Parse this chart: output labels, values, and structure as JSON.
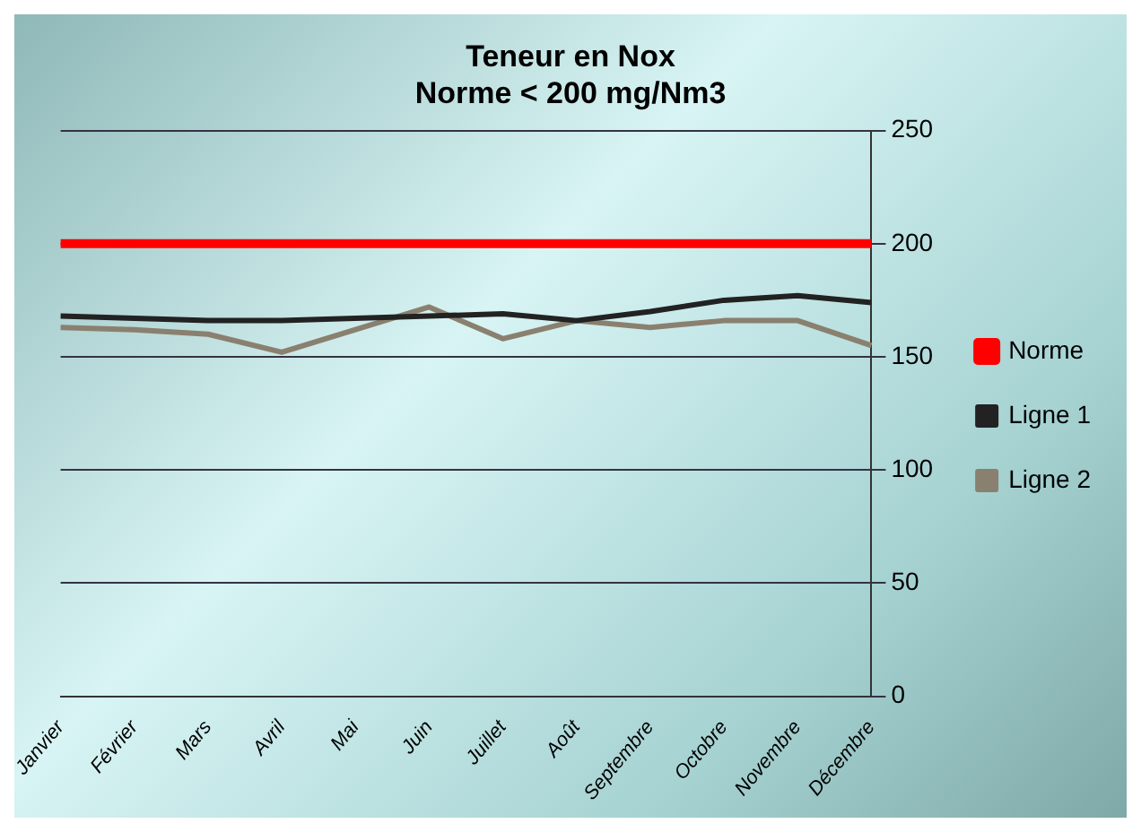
{
  "chart_data": {
    "type": "line",
    "title": "Teneur en Nox\nNorme < 200 mg/Nm3",
    "categories": [
      "Janvier",
      "Février",
      "Mars",
      "Avril",
      "Mai",
      "Juin",
      "Juillet",
      "Août",
      "Septembre",
      "Octobre",
      "Novembre",
      "Décembre"
    ],
    "series": [
      {
        "name": "Norme",
        "color": "#ff0000",
        "values": [
          200,
          200,
          200,
          200,
          200,
          200,
          200,
          200,
          200,
          200,
          200,
          200
        ]
      },
      {
        "name": "Ligne 1",
        "color": "#222222",
        "values": [
          168,
          167,
          166,
          166,
          167,
          168,
          169,
          166,
          170,
          175,
          177,
          174
        ]
      },
      {
        "name": "Ligne 2",
        "color": "#8a8070",
        "values": [
          163,
          162,
          160,
          152,
          162,
          172,
          158,
          166,
          163,
          166,
          166,
          155
        ]
      }
    ],
    "ylim": [
      0,
      250
    ],
    "yticks": [
      0,
      50,
      100,
      150,
      200,
      250
    ],
    "grid": "y",
    "legend": "right",
    "marker": "none"
  }
}
